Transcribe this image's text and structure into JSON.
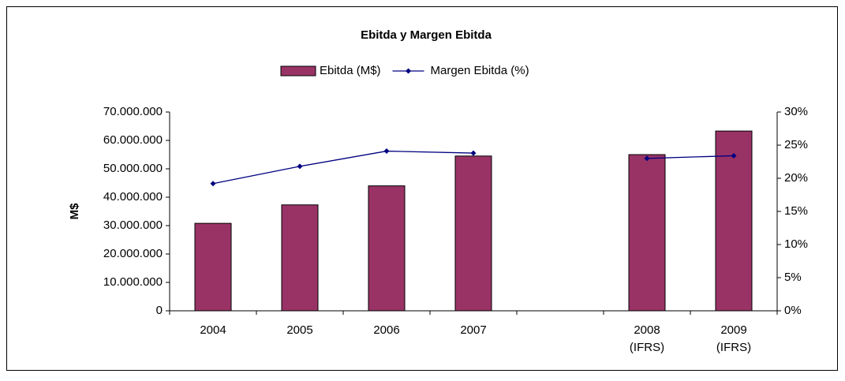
{
  "chart_data": {
    "type": "bar_line",
    "title": "Ebitda y Margen Ebitda",
    "y_label": "M$",
    "categories": [
      "2004",
      "2005",
      "2006",
      "2007",
      null,
      "2008 (IFRS)",
      "2009 (IFRS)"
    ],
    "series": [
      {
        "name": "Ebitda (M$)",
        "type": "bar",
        "color": "#993366",
        "values": [
          30800000,
          37300000,
          44000000,
          54500000,
          null,
          55000000,
          63300000
        ]
      },
      {
        "name": "Margen Ebitda (%)",
        "type": "line",
        "axis": "y2",
        "color": "#000080",
        "values": [
          19.2,
          21.8,
          24.1,
          23.8,
          null,
          23.0,
          23.4
        ]
      }
    ],
    "ylim": [
      0,
      70000000
    ],
    "yticks": [
      0,
      {
        "value": 10000000,
        "label": "10.000.000"
      },
      {
        "value": 20000000,
        "label": "20.000.000"
      },
      {
        "value": 30000000,
        "label": "30.000.000"
      },
      {
        "value": 40000000,
        "label": "40.000.000"
      },
      {
        "value": 50000000,
        "label": "50.000.000"
      },
      {
        "value": 60000000,
        "label": "60.000.000"
      },
      {
        "value": 70000000,
        "label": "70.000.000"
      }
    ],
    "y2lim": [
      0,
      30
    ],
    "y2ticks": [
      {
        "value": 0,
        "label": "0%"
      },
      {
        "value": 5,
        "label": "5%"
      },
      {
        "value": 10,
        "label": "10%"
      },
      {
        "value": 15,
        "label": "15%"
      },
      {
        "value": 20,
        "label": "20%"
      },
      {
        "value": 25,
        "label": "25%"
      },
      {
        "value": 30,
        "label": "30%"
      }
    ],
    "legend": "top"
  }
}
